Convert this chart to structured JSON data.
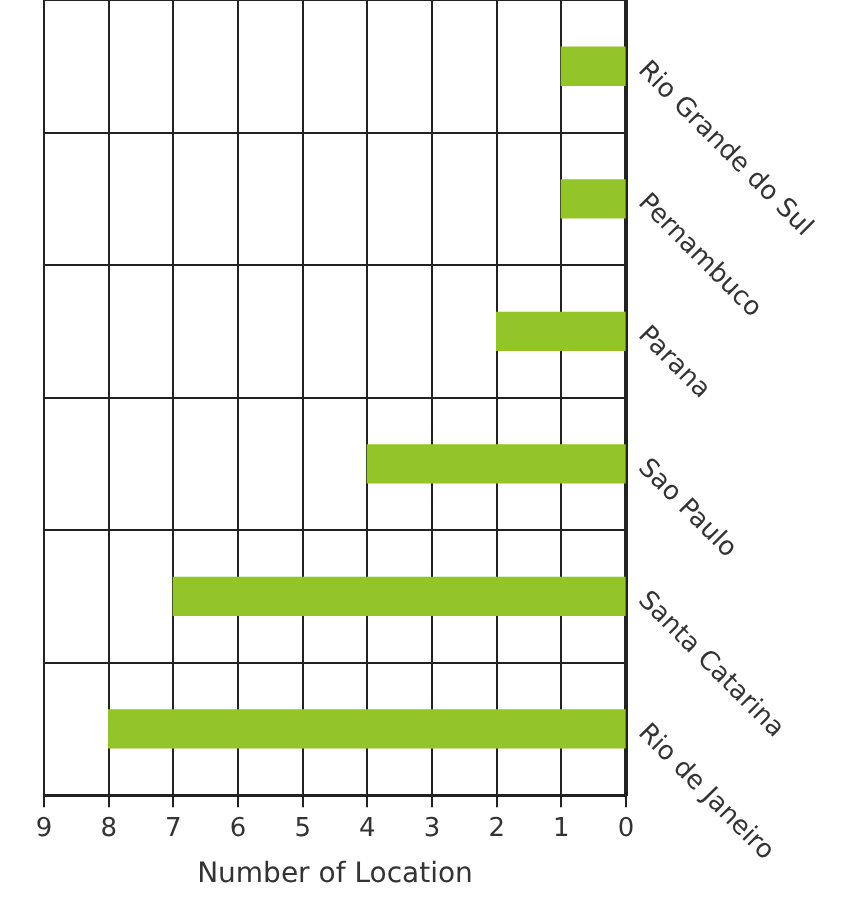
{
  "chart_data": {
    "type": "bar",
    "orientation": "horizontal",
    "xlabel": "Number of Location",
    "categories": [
      "Rio Grande do Sul",
      "Pernambuco",
      "Parana",
      "Sao Paulo",
      "Santa Catarina",
      "Rio de Janeiro"
    ],
    "values": [
      1,
      1,
      2,
      4,
      7,
      8
    ],
    "color": "#93c42a",
    "xlim": [
      9,
      0
    ],
    "xticks": [
      9,
      8,
      7,
      6,
      5,
      4,
      3,
      2,
      1,
      0
    ],
    "grid": true
  }
}
